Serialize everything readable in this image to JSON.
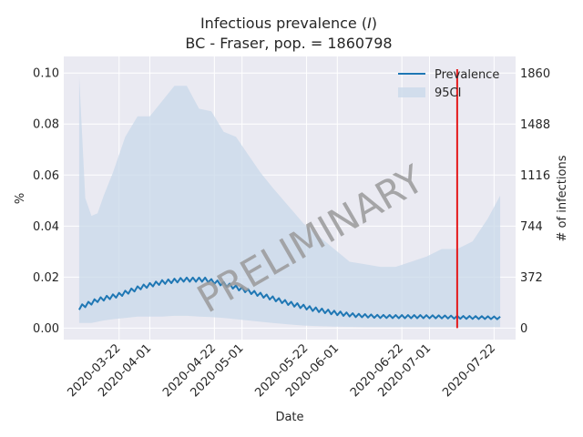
{
  "chart_data": {
    "type": "line",
    "title_line1": "Infectious prevalence (I)",
    "title_line1_prefix": "Infectious prevalence (",
    "title_line1_var": "I",
    "title_line1_suffix": ")",
    "title_line2": "BC - Fraser, pop. = 1860798",
    "xlabel": "Date",
    "ylabel": "%",
    "ylabel_right": "# of infections",
    "ylim": [
      -0.0045,
      0.1065
    ],
    "ylim_right": [
      -83.7,
      1981.8
    ],
    "xlim": [
      "2020-03-04",
      "2020-07-29"
    ],
    "yticks": [
      "0.00",
      "0.02",
      "0.04",
      "0.06",
      "0.08",
      "0.10"
    ],
    "yticks_right": [
      "0",
      "372",
      "744",
      "1116",
      "1488",
      "1860"
    ],
    "xticks": [
      "2020-03-22",
      "2020-04-01",
      "2020-04-22",
      "2020-05-01",
      "2020-05-22",
      "2020-06-01",
      "2020-06-22",
      "2020-07-01",
      "2020-07-22"
    ],
    "legend_placement": "top-right",
    "grid": true,
    "legend": [
      "Prevalence",
      "95CI"
    ],
    "vline_date": "2020-07-10",
    "watermark": "PRELIMINARY",
    "colors": {
      "line": "#1f77b4",
      "band": "#c8d8ea",
      "vline": "#e41a1c",
      "bg": "#eaeaf2",
      "grid": "#ffffff"
    },
    "series": [
      {
        "name": "Prevalence",
        "x": [
          "2020-03-09",
          "2020-03-15",
          "2020-03-22",
          "2020-03-29",
          "2020-04-05",
          "2020-04-12",
          "2020-04-19",
          "2020-04-26",
          "2020-05-03",
          "2020-05-10",
          "2020-05-17",
          "2020-05-24",
          "2020-05-31",
          "2020-06-07",
          "2020-06-14",
          "2020-06-21",
          "2020-06-28",
          "2020-07-05",
          "2020-07-12",
          "2020-07-19",
          "2020-07-24"
        ],
        "y": [
          0.008,
          0.011,
          0.013,
          0.016,
          0.018,
          0.019,
          0.019,
          0.017,
          0.0145,
          0.012,
          0.0095,
          0.0075,
          0.006,
          0.005,
          0.0046,
          0.0045,
          0.0045,
          0.0044,
          0.0042,
          0.0041,
          0.004
        ]
      },
      {
        "name": "95CI",
        "x": [
          "2020-03-09",
          "2020-03-11",
          "2020-03-13",
          "2020-03-15",
          "2020-03-17",
          "2020-03-20",
          "2020-03-24",
          "2020-03-28",
          "2020-04-01",
          "2020-04-05",
          "2020-04-09",
          "2020-04-13",
          "2020-04-17",
          "2020-04-21",
          "2020-04-25",
          "2020-04-29",
          "2020-05-03",
          "2020-05-07",
          "2020-05-11",
          "2020-05-16",
          "2020-05-21",
          "2020-05-26",
          "2020-05-31",
          "2020-06-05",
          "2020-06-10",
          "2020-06-15",
          "2020-06-20",
          "2020-06-25",
          "2020-06-30",
          "2020-07-05",
          "2020-07-10",
          "2020-07-15",
          "2020-07-20",
          "2020-07-24"
        ],
        "upper": [
          0.099,
          0.051,
          0.044,
          0.045,
          0.052,
          0.061,
          0.075,
          0.083,
          0.083,
          0.089,
          0.095,
          0.095,
          0.086,
          0.085,
          0.077,
          0.075,
          0.068,
          0.061,
          0.055,
          0.048,
          0.041,
          0.036,
          0.031,
          0.026,
          0.025,
          0.024,
          0.024,
          0.026,
          0.028,
          0.031,
          0.031,
          0.034,
          0.043,
          0.052
        ],
        "lower": [
          0.002,
          0.002,
          0.002,
          0.0025,
          0.003,
          0.0035,
          0.004,
          0.0045,
          0.0045,
          0.0045,
          0.0048,
          0.0048,
          0.0045,
          0.0043,
          0.004,
          0.0035,
          0.003,
          0.0025,
          0.002,
          0.0015,
          0.001,
          0.0008,
          0.0006,
          0.0005,
          0.0004,
          0.0004,
          0.0004,
          0.0004,
          0.0004,
          0.0004,
          0.0004,
          0.0004,
          0.0004,
          0.0004
        ]
      }
    ]
  }
}
